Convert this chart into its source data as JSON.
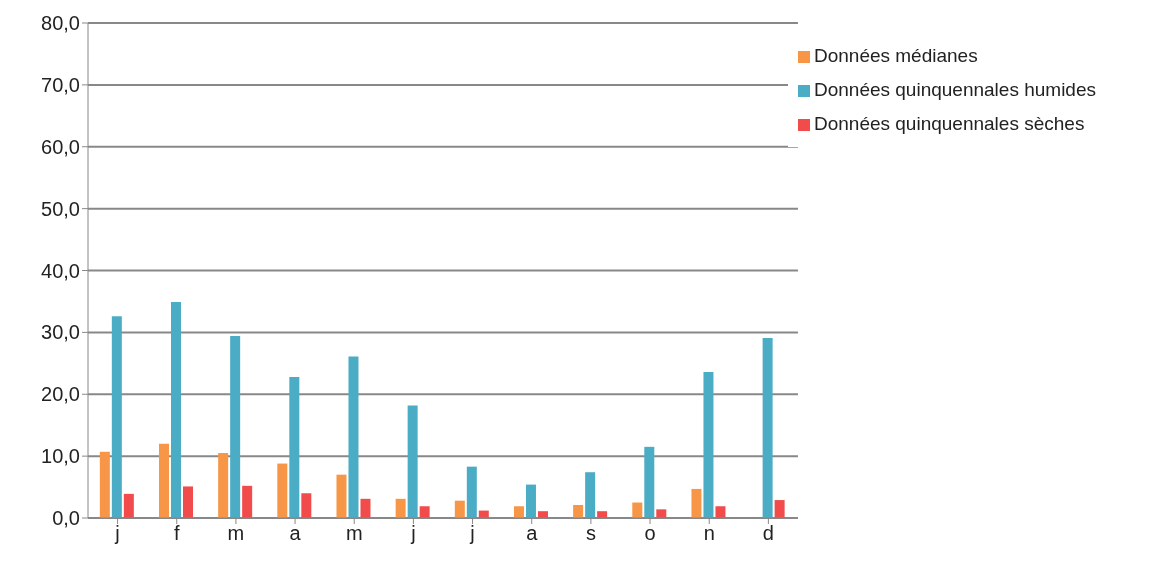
{
  "chart_data": {
    "type": "bar",
    "categories": [
      "j",
      "f",
      "m",
      "a",
      "m",
      "j",
      "j",
      "a",
      "s",
      "o",
      "n",
      "d"
    ],
    "series": [
      {
        "name": "Données médianes",
        "color": "#f79646",
        "values": [
          10.7,
          12.0,
          10.5,
          8.8,
          7.0,
          3.1,
          2.8,
          1.9,
          2.1,
          2.5,
          4.7,
          0
        ]
      },
      {
        "name": "Données quinquennales humides",
        "color": "#4bacc6",
        "values": [
          32.6,
          34.9,
          29.4,
          22.8,
          26.1,
          18.2,
          8.3,
          5.4,
          7.4,
          11.5,
          23.6,
          29.1
        ]
      },
      {
        "name": "Données quinquennales sèches",
        "color": "#f24b4b",
        "values": [
          3.9,
          5.1,
          5.2,
          4.0,
          3.1,
          1.9,
          1.2,
          1.1,
          1.1,
          1.4,
          1.9,
          2.9
        ]
      }
    ],
    "ylim": [
      0,
      80
    ],
    "yticks": [
      {
        "value": 0,
        "label": "0,0"
      },
      {
        "value": 10,
        "label": "10,0"
      },
      {
        "value": 20,
        "label": "20,0"
      },
      {
        "value": 30,
        "label": "30,0"
      },
      {
        "value": 40,
        "label": "40,0"
      },
      {
        "value": 50,
        "label": "50,0"
      },
      {
        "value": 60,
        "label": "60,0"
      },
      {
        "value": 70,
        "label": "70,0"
      },
      {
        "value": 80,
        "label": "80,0"
      }
    ],
    "grid": "y",
    "legend": "top right"
  }
}
